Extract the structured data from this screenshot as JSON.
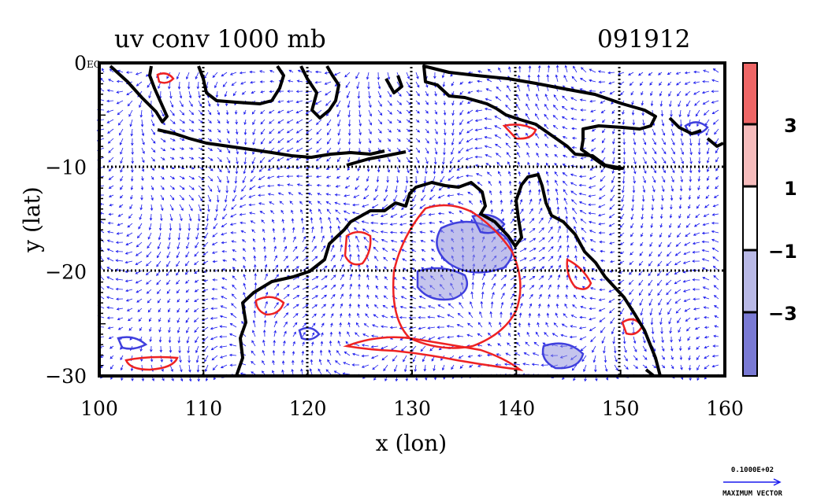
{
  "title": {
    "left": "uv conv 1000 mb",
    "right": "091912"
  },
  "x_axis": {
    "label": "x (lon)",
    "ticks": [
      "100",
      "110",
      "120",
      "130",
      "140",
      "150",
      "160"
    ],
    "range": [
      100,
      160
    ]
  },
  "y_axis": {
    "label": "y (lat)",
    "ticks": [
      "0",
      "−10",
      "−20",
      "−30"
    ],
    "range": [
      -30,
      0
    ]
  },
  "corner_tag": "EQ",
  "colorbar": {
    "labels": [
      "3",
      "1",
      "−1",
      "−3"
    ],
    "colors": [
      "#ee6666",
      "#f6bcbc",
      "#ffffff",
      "#b9b9e6",
      "#7a7ad4"
    ]
  },
  "vector_key": {
    "magnitude": "0.1000E+02",
    "label": "MAXIMUM VECTOR"
  },
  "colors": {
    "vector": "#1a1aee",
    "pos_contour": "#ee2222",
    "neg_contour": "#4040dd",
    "coast": "#000000"
  }
}
